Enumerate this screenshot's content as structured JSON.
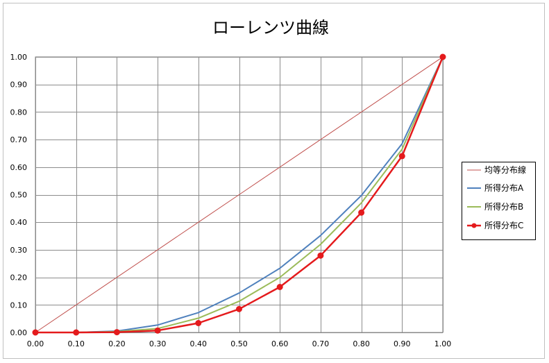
{
  "chart_data": {
    "type": "line",
    "title": "ローレンツ曲線",
    "xlabel": "",
    "ylabel": "",
    "xlim": [
      0,
      1
    ],
    "ylim": [
      0,
      1
    ],
    "grid": true,
    "legend_position": "right",
    "x_ticks": [
      "0.00",
      "0.10",
      "0.20",
      "0.30",
      "0.40",
      "0.50",
      "0.60",
      "0.70",
      "0.80",
      "0.90",
      "1.00"
    ],
    "y_ticks": [
      "0.00",
      "0.10",
      "0.20",
      "0.30",
      "0.40",
      "0.50",
      "0.60",
      "0.70",
      "0.80",
      "0.90",
      "1.00"
    ],
    "x": [
      0.0,
      0.1,
      0.2,
      0.3,
      0.4,
      0.5,
      0.6,
      0.7,
      0.8,
      0.9,
      1.0
    ],
    "series": [
      {
        "name": "均等分布線",
        "color": "#c0504d",
        "values": [
          0.0,
          0.1,
          0.2,
          0.3,
          0.4,
          0.5,
          0.6,
          0.7,
          0.8,
          0.9,
          1.0
        ]
      },
      {
        "name": "所得分布A",
        "color": "#4f81bd",
        "values": [
          0.0,
          0.0,
          0.005,
          0.027,
          0.072,
          0.143,
          0.233,
          0.352,
          0.497,
          0.685,
          1.0
        ]
      },
      {
        "name": "所得分布B",
        "color": "#9bbb59",
        "values": [
          0.0,
          0.0,
          0.003,
          0.014,
          0.052,
          0.113,
          0.2,
          0.32,
          0.47,
          0.665,
          1.0
        ]
      },
      {
        "name": "所得分布C",
        "color": "#e41a1c",
        "markers": true,
        "values": [
          0.0,
          0.0,
          0.001,
          0.007,
          0.034,
          0.085,
          0.165,
          0.279,
          0.435,
          0.64,
          1.0
        ]
      }
    ]
  }
}
